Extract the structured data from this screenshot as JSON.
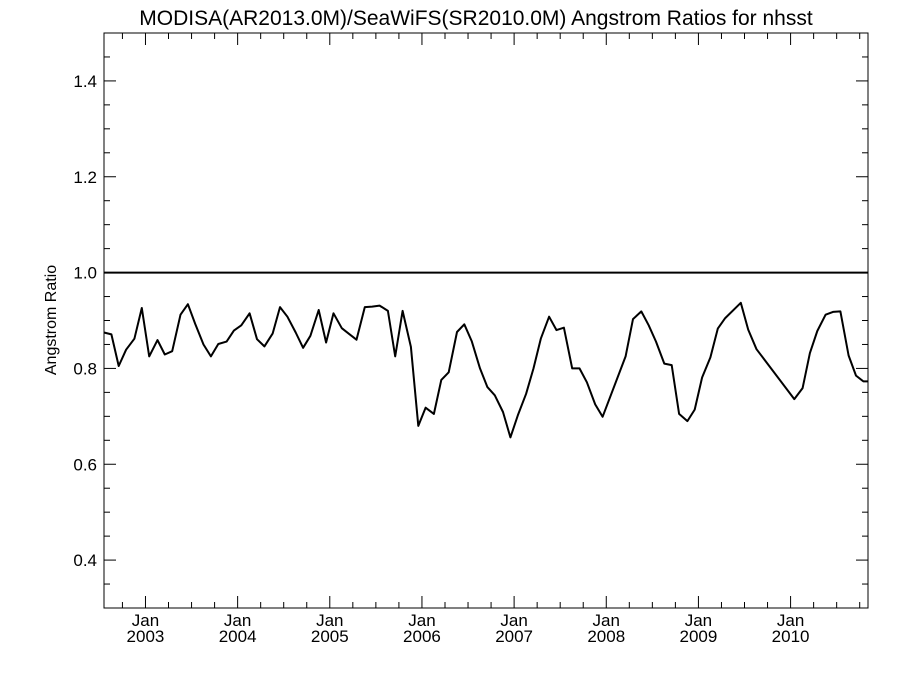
{
  "chart_data": {
    "type": "line",
    "title": "MODISA(AR2013.0M)/SeaWiFS(SR2010.0M)  Angstrom Ratios for nhsst",
    "xlabel": "",
    "ylabel": "Angstrom Ratio",
    "xlim": [
      2002.55,
      2010.84
    ],
    "ylim": [
      0.3,
      1.5
    ],
    "y_ticks": [
      "0.4",
      "0.6",
      "0.8",
      "1.0",
      "1.2",
      "1.4"
    ],
    "x_ticks": [
      {
        "month": "Jan",
        "year": "2003",
        "x": 2003.0
      },
      {
        "month": "Jan",
        "year": "2004",
        "x": 2004.0
      },
      {
        "month": "Jan",
        "year": "2005",
        "x": 2005.0
      },
      {
        "month": "Jan",
        "year": "2006",
        "x": 2006.0
      },
      {
        "month": "Jan",
        "year": "2007",
        "x": 2007.0
      },
      {
        "month": "Jan",
        "year": "2008",
        "x": 2008.0
      },
      {
        "month": "Jan",
        "year": "2009",
        "x": 2009.0
      },
      {
        "month": "Jan",
        "year": "2010",
        "x": 2010.0
      }
    ],
    "reference_line": 1.0,
    "grid": false,
    "series": [
      {
        "color": "#000000",
        "x": [
          2002.54,
          2002.63,
          2002.71,
          2002.79,
          2002.88,
          2002.96,
          2003.04,
          2003.13,
          2003.21,
          2003.29,
          2003.38,
          2003.46,
          2003.54,
          2003.63,
          2003.71,
          2003.79,
          2003.88,
          2003.96,
          2004.04,
          2004.13,
          2004.21,
          2004.29,
          2004.38,
          2004.46,
          2004.54,
          2004.63,
          2004.71,
          2004.79,
          2004.88,
          2004.96,
          2005.04,
          2005.13,
          2005.21,
          2005.29,
          2005.38,
          2005.46,
          2005.54,
          2005.63,
          2005.71,
          2005.79,
          2005.88,
          2005.96,
          2006.04,
          2006.13,
          2006.21,
          2006.29,
          2006.38,
          2006.46,
          2006.54,
          2006.63,
          2006.71,
          2006.79,
          2006.88,
          2006.96,
          2007.04,
          2007.13,
          2007.21,
          2007.29,
          2007.38,
          2007.46,
          2007.54,
          2007.63,
          2007.71,
          2007.79,
          2007.88,
          2007.96,
          2008.21,
          2008.29,
          2008.38,
          2008.46,
          2008.54,
          2008.63,
          2008.71,
          2008.79,
          2008.88,
          2008.96,
          2009.04,
          2009.13,
          2009.21,
          2009.29,
          2009.46,
          2009.54,
          2009.63,
          2010.04,
          2010.13,
          2010.21,
          2010.29,
          2010.38,
          2010.46,
          2010.54,
          2010.63,
          2010.71,
          2010.79,
          2010.84
        ],
        "y": [
          0.875,
          0.871,
          0.805,
          0.839,
          0.862,
          0.926,
          0.825,
          0.859,
          0.829,
          0.836,
          0.912,
          0.934,
          0.893,
          0.85,
          0.825,
          0.851,
          0.856,
          0.879,
          0.89,
          0.915,
          0.861,
          0.846,
          0.873,
          0.928,
          0.908,
          0.875,
          0.843,
          0.868,
          0.922,
          0.854,
          0.915,
          0.884,
          0.872,
          0.86,
          0.928,
          0.929,
          0.931,
          0.92,
          0.825,
          0.92,
          0.845,
          0.68,
          0.718,
          0.705,
          0.776,
          0.792,
          0.876,
          0.892,
          0.857,
          0.8,
          0.761,
          0.744,
          0.709,
          0.656,
          0.702,
          0.747,
          0.8,
          0.862,
          0.908,
          0.88,
          0.885,
          0.8,
          0.8,
          0.771,
          0.725,
          0.699,
          0.825,
          0.903,
          0.919,
          0.89,
          0.856,
          0.81,
          0.807,
          0.705,
          0.69,
          0.714,
          0.781,
          0.823,
          0.883,
          0.905,
          0.937,
          0.881,
          0.84,
          0.736,
          0.759,
          0.832,
          0.878,
          0.912,
          0.918,
          0.919,
          0.827,
          0.785,
          0.773,
          0.773
        ]
      }
    ]
  }
}
